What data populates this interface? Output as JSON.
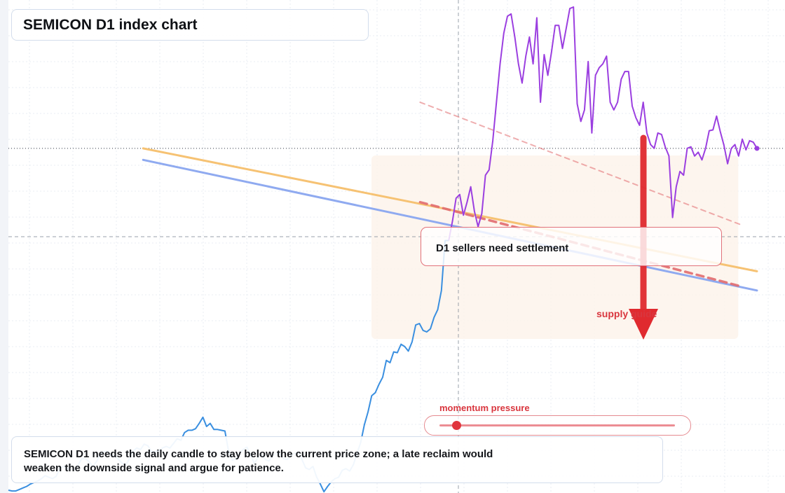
{
  "title": "SEMICON D1 index chart",
  "annotations": {
    "settlement": "D1 sellers need settlement",
    "supply": "supply guide",
    "momentum_label": "momentum pressure",
    "note": "SEMICON D1 needs the daily candle to stay below the current price zone; a late reclaim would weaken the downside signal and argue for patience."
  },
  "momentum": {
    "level": 0.07
  },
  "colors": {
    "price_early": "#3a8fe0",
    "price_late": "#9b3fe0",
    "trend_orange": "#f6c273",
    "trend_blue": "#8faaf0",
    "supply_line": "#e26c6f",
    "arrow": "#e02a2f",
    "zone": "#fdf3ea",
    "grid": "#e9edf3"
  },
  "chart_data": {
    "type": "line",
    "title": "SEMICON D1 index chart",
    "xlabel": "",
    "ylabel": "",
    "grid": true,
    "series": [
      {
        "values": [
          45,
          44,
          44,
          46,
          48,
          50,
          53,
          55,
          57,
          60,
          64,
          62,
          60,
          63,
          74,
          76,
          73,
          72,
          72,
          78,
          86,
          86,
          82,
          76,
          82,
          92,
          95,
          95,
          90,
          90,
          85,
          80,
          78,
          86,
          96,
          100,
          98,
          105,
          103,
          95,
          95,
          97,
          100,
          102,
          100,
          106,
          112,
          110,
          120,
          123,
          123,
          125,
          132,
          140,
          128,
          132,
          124,
          124,
          123,
          122,
          96,
          84,
          86,
          93,
          98,
          101,
          91,
          80,
          87,
          92,
          85,
          83,
          90,
          93,
          92,
          86,
          85,
          90,
          93,
          94,
          85,
          74,
          72,
          76,
          62,
          53,
          43,
          50,
          56,
          60,
          62,
          71,
          73,
          70,
          78,
          93,
          107,
          130,
          147,
          168,
          172,
          183,
          192,
          214,
          211,
          225,
          224,
          235,
          232,
          226,
          238,
          260,
          262,
          253,
          251,
          255,
          270,
          280,
          305,
          370,
          370,
          395,
          425,
          430,
          403,
          420,
          440,
          408,
          388,
          405,
          455,
          462,
          500,
          550,
          600,
          640,
          662,
          665,
          635,
          600,
          575,
          610,
          635,
          600,
          660,
          550,
          612,
          585,
          615,
          650,
          650,
          620,
          646,
          672,
          674,
          548,
          525,
          540,
          603,
          510,
          585,
          595,
          600,
          610,
          550,
          540,
          550,
          580,
          590,
          590,
          545,
          530,
          520,
          550,
          510,
          495,
          490,
          510,
          508,
          492,
          480,
          400,
          440,
          460,
          455,
          490,
          492,
          480,
          485,
          475,
          490,
          513,
          514,
          532,
          512,
          494,
          470,
          490,
          495,
          480,
          502,
          488,
          500,
          498,
          490
        ]
      }
    ],
    "trendlines": [
      {
        "name": "upper",
        "start": [
          0.18,
          490
        ],
        "end": [
          1.0,
          330
        ]
      },
      {
        "name": "lower",
        "start": [
          0.18,
          475
        ],
        "end": [
          1.0,
          305
        ]
      },
      {
        "name": "supply guide (bold)",
        "start": [
          0.55,
          420
        ],
        "end": [
          0.98,
          310
        ]
      },
      {
        "name": "supply guide (faint)",
        "start": [
          0.55,
          550
        ],
        "end": [
          0.98,
          390
        ]
      }
    ]
  }
}
